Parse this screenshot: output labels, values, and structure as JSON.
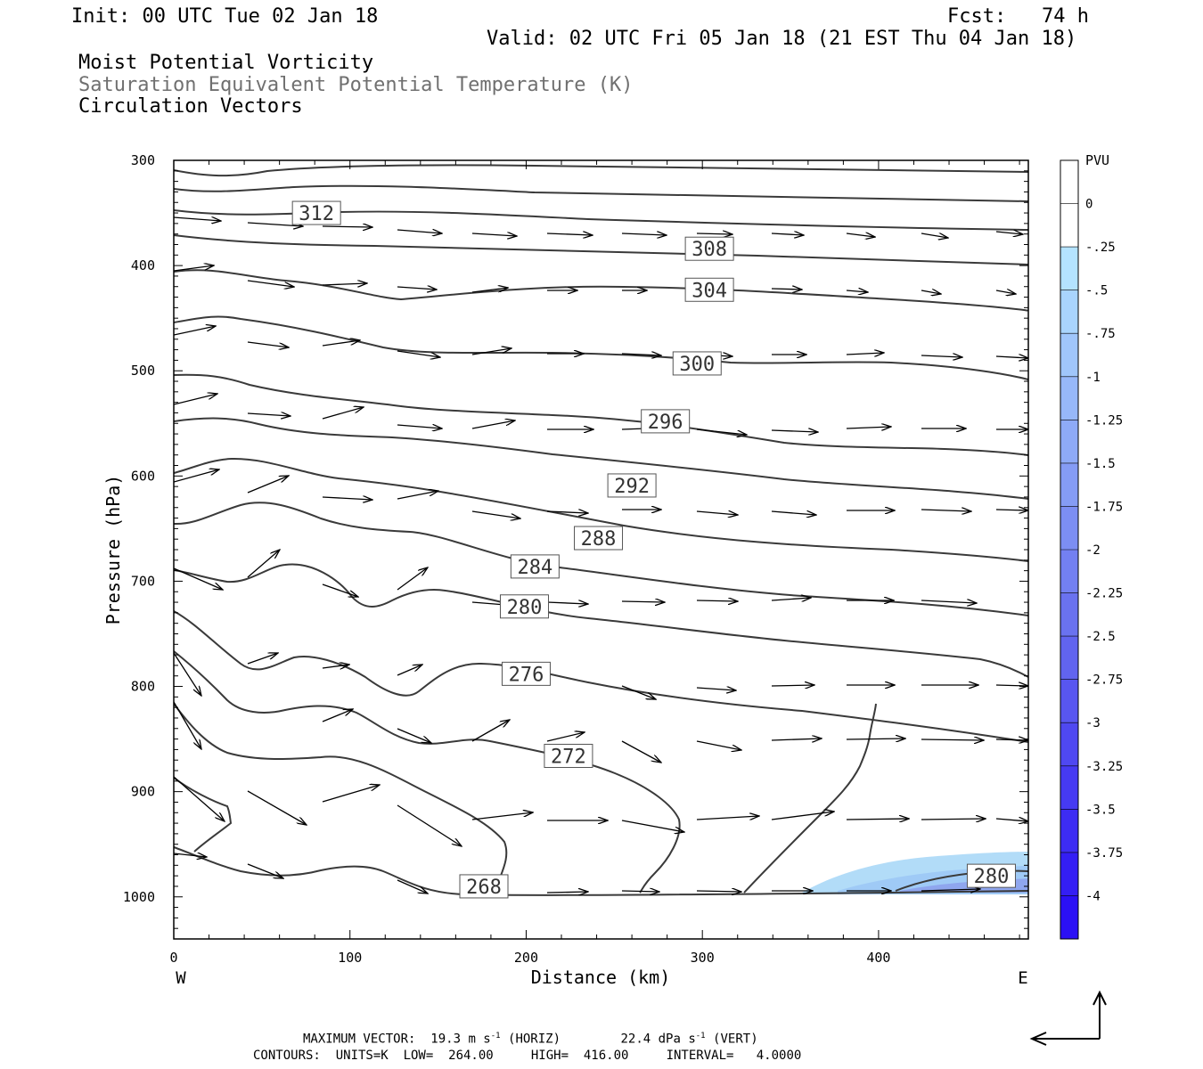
{
  "header": {
    "init": "Init: 00 UTC Tue 02 Jan 18",
    "fcst": "Fcst:   74 h",
    "valid": "Valid: 02 UTC Fri 05 Jan 18 (21 EST Thu 04 Jan 18)",
    "fields": [
      "Moist Potential Vorticity",
      "Saturation Equivalent Potential Temperature (K)",
      "Circulation Vectors"
    ]
  },
  "footer": {
    "max_vector_label": "MAXIMUM VECTOR:",
    "max_horiz": "19.3 m s",
    "max_horiz_unit": "(HORIZ)",
    "max_vert": "22.4 dPa s",
    "max_vert_unit": "(VERT)",
    "exponent": "-1",
    "contours": "CONTOURS:  UNITS=K  LOW=  264.00     HIGH=  416.00     INTERVAL=   4.0000"
  },
  "colors": {
    "contour": "#3a3a3a",
    "shade_light": "#b2dcf8",
    "shade_mid": "#9fcaf6",
    "shade_dark": "#8fa6ee"
  },
  "chart_data": {
    "type": "cross-section",
    "xlabel": "Distance (km)",
    "ylabel": "Pressure (hPa)",
    "xlim": [
      0,
      485
    ],
    "ylim": [
      1040,
      300
    ],
    "x_ticks": [
      "0",
      "100",
      "200",
      "300",
      "400"
    ],
    "x_tick_values": [
      0,
      100,
      200,
      300,
      400
    ],
    "y_ticks": [
      "300",
      "400",
      "500",
      "600",
      "700",
      "800",
      "900",
      "1000"
    ],
    "y_tick_values": [
      300,
      400,
      500,
      600,
      700,
      800,
      900,
      1000
    ],
    "left_end_label": "W",
    "right_end_label": "E",
    "contour_labels": [
      {
        "text": "312",
        "x": 81,
        "p": 350
      },
      {
        "text": "308",
        "x": 304,
        "p": 384
      },
      {
        "text": "304",
        "x": 304,
        "p": 423
      },
      {
        "text": "300",
        "x": 297,
        "p": 493
      },
      {
        "text": "296",
        "x": 279,
        "p": 548
      },
      {
        "text": "292",
        "x": 260,
        "p": 609
      },
      {
        "text": "288",
        "x": 241,
        "p": 659
      },
      {
        "text": "284",
        "x": 205,
        "p": 686
      },
      {
        "text": "280",
        "x": 199,
        "p": 724
      },
      {
        "text": "276",
        "x": 200,
        "p": 788
      },
      {
        "text": "272",
        "x": 224,
        "p": 866
      },
      {
        "text": "268",
        "x": 176,
        "p": 990
      },
      {
        "text": "280",
        "x": 464,
        "p": 980
      }
    ],
    "colorbar": {
      "title": "PVU",
      "labels": [
        "0",
        "-.25",
        "-.5",
        "-.75",
        "-1",
        "-1.25",
        "-1.5",
        "-1.75",
        "-2",
        "-2.25",
        "-2.5",
        "-2.75",
        "-3",
        "-3.25",
        "-3.5",
        "-3.75",
        "-4"
      ],
      "colors": [
        "#ffffff",
        "#ffffff",
        "#b4e3ff",
        "#a9d4fd",
        "#a0c6fb",
        "#97b8f9",
        "#8eaaf7",
        "#859cf5",
        "#7c8ef3",
        "#7380f1",
        "#6a72ef",
        "#6164ef",
        "#5856f0",
        "#4f48f1",
        "#463af2",
        "#3d2cf3",
        "#341ef4",
        "#2b10f5"
      ]
    }
  }
}
